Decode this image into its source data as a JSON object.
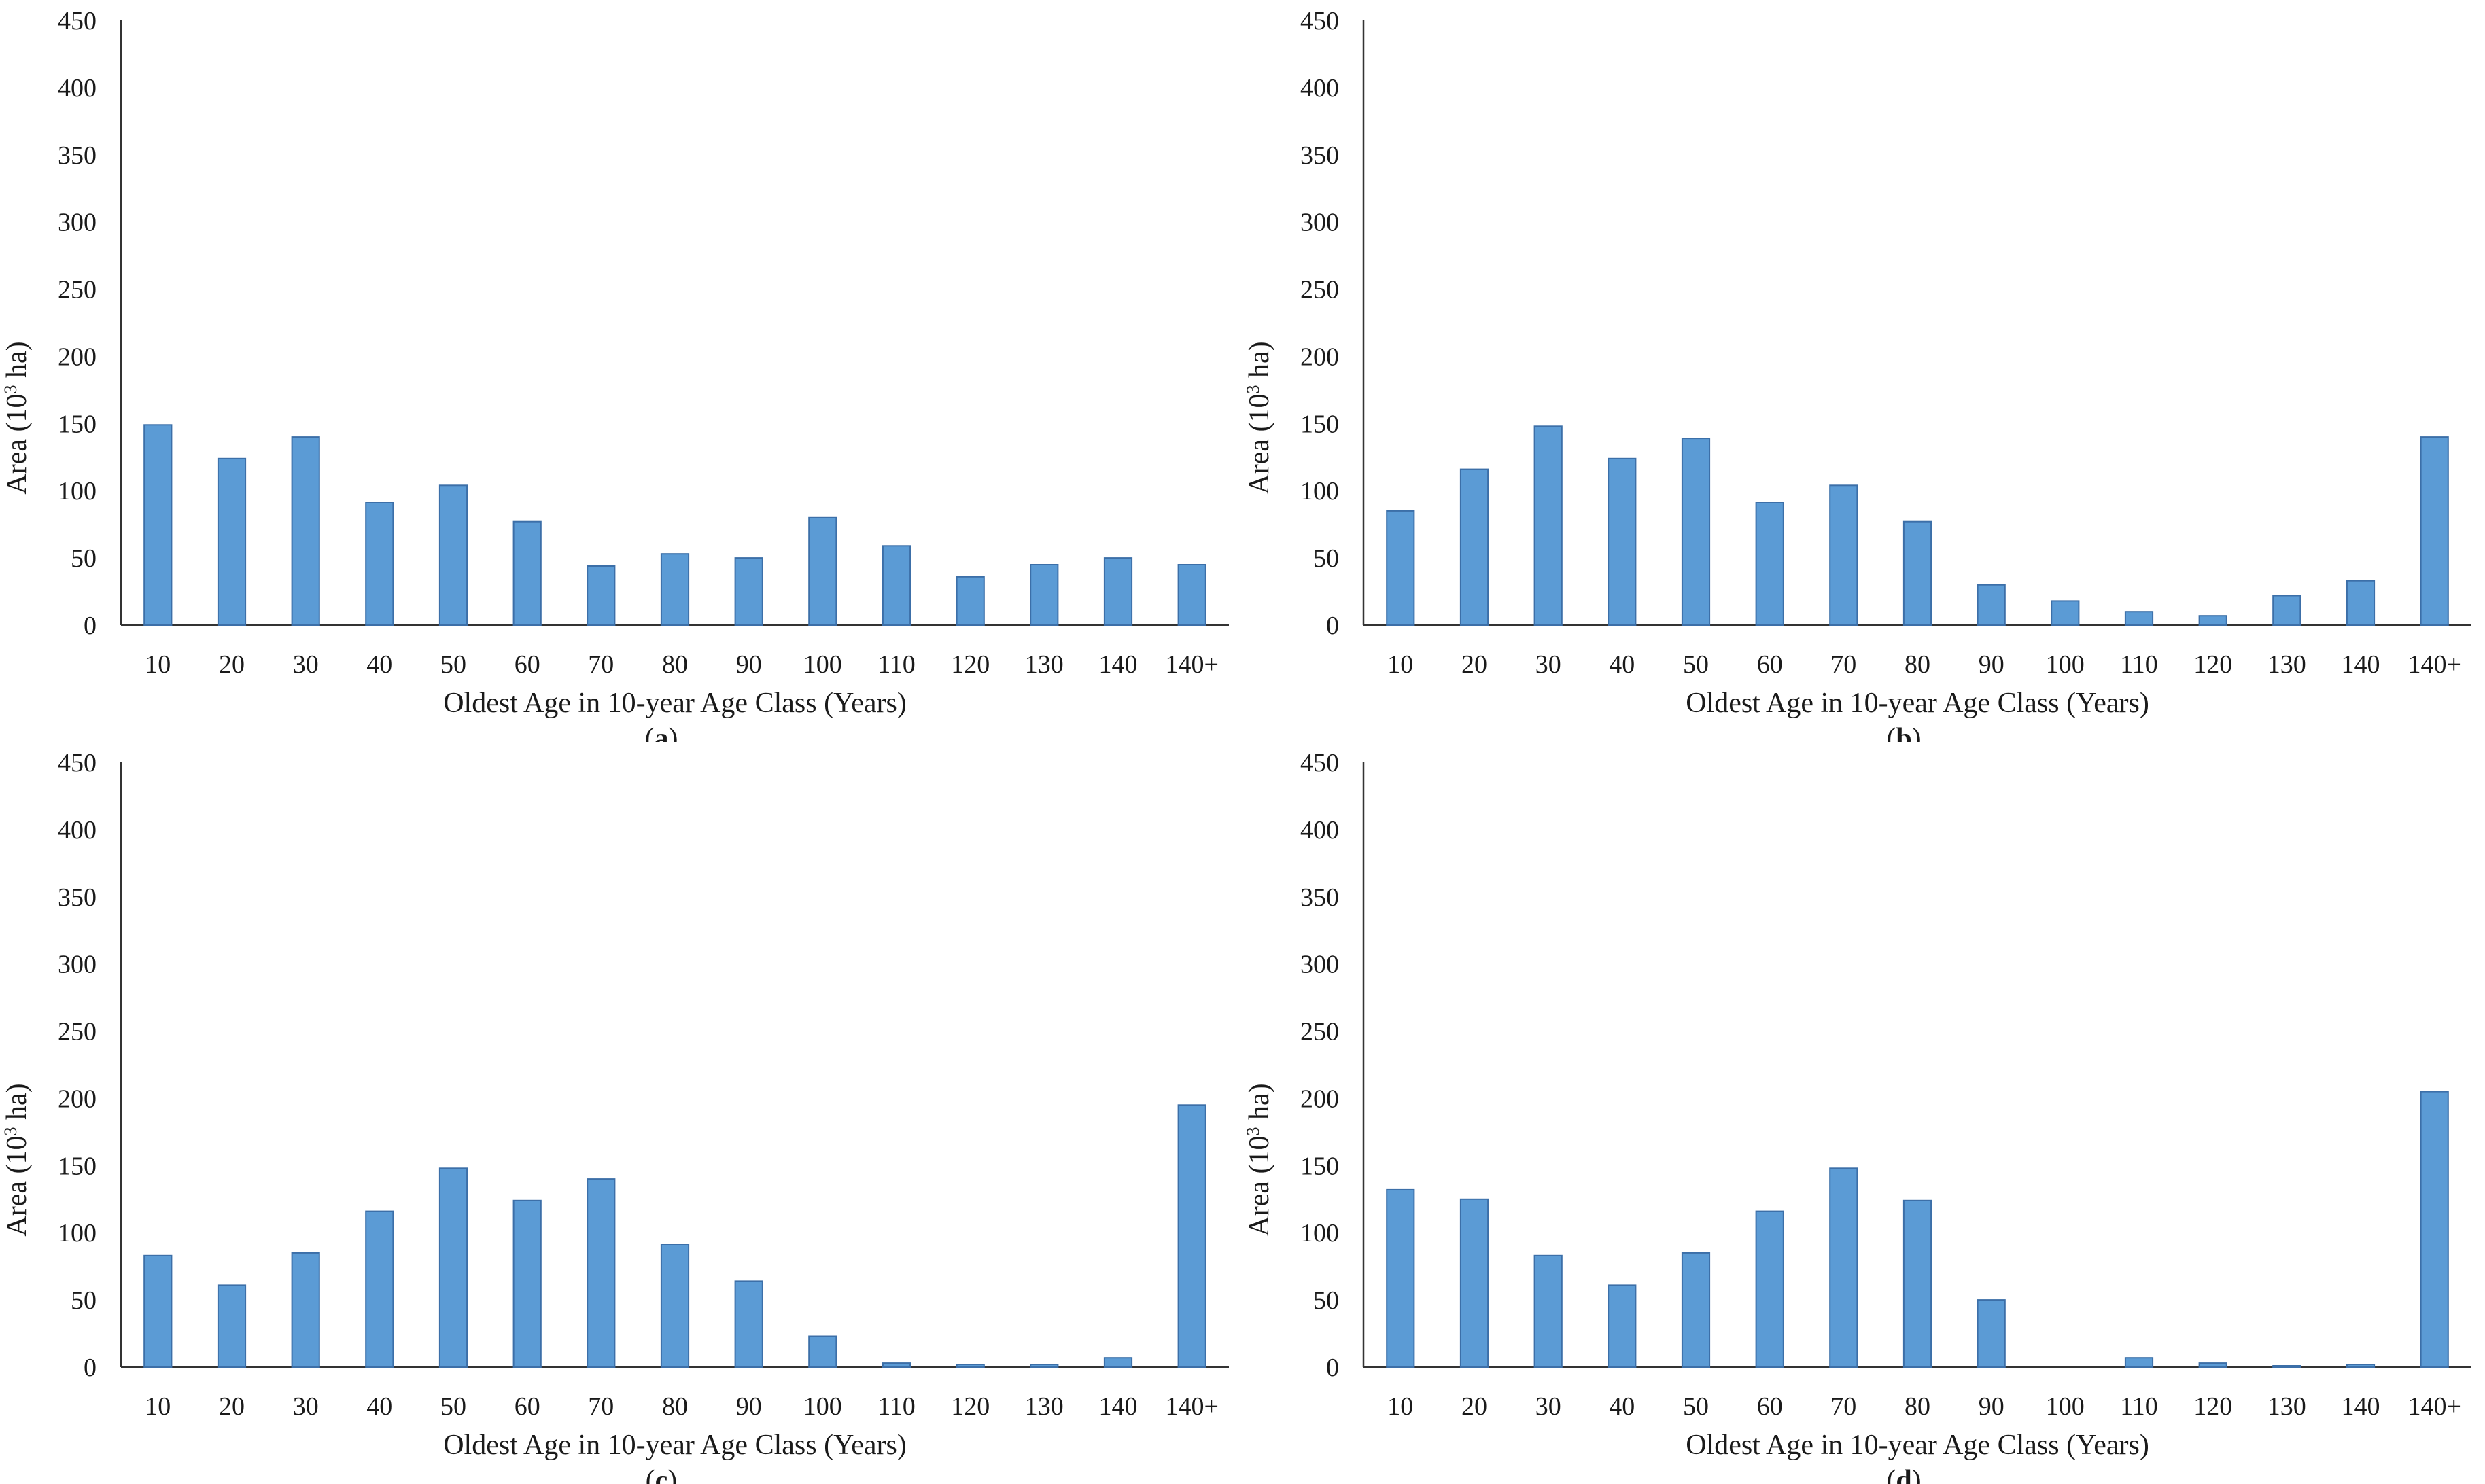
{
  "figure": {
    "bar_color": "#5b9bd5",
    "bar_edge_color": "#3c6fa8"
  },
  "chart_data": [
    {
      "panel": "a",
      "type": "bar",
      "caption": "a",
      "categories": [
        "10",
        "20",
        "30",
        "40",
        "50",
        "60",
        "70",
        "80",
        "90",
        "100",
        "110",
        "120",
        "130",
        "140",
        "140+"
      ],
      "values": [
        149,
        124,
        140,
        91,
        104,
        77,
        44,
        53,
        50,
        80,
        59,
        36,
        45,
        50,
        45
      ],
      "yticks": [
        "0",
        "50",
        "100",
        "150",
        "200",
        "250",
        "300",
        "350",
        "400",
        "450"
      ],
      "ylim": [
        0,
        450
      ],
      "xlabel": "Oldest Age in 10-year Age Class (Years)",
      "ylabel_pre": "Area (10",
      "ylabel_sup": "3",
      "ylabel_post": " ha)"
    },
    {
      "panel": "b",
      "type": "bar",
      "caption": "b",
      "categories": [
        "10",
        "20",
        "30",
        "40",
        "50",
        "60",
        "70",
        "80",
        "90",
        "100",
        "110",
        "120",
        "130",
        "140",
        "140+"
      ],
      "values": [
        85,
        116,
        148,
        124,
        139,
        91,
        104,
        77,
        30,
        18,
        10,
        7,
        22,
        33,
        140
      ],
      "yticks": [
        "0",
        "50",
        "100",
        "150",
        "200",
        "250",
        "300",
        "350",
        "400",
        "450"
      ],
      "ylim": [
        0,
        450
      ],
      "xlabel": "Oldest Age in 10-year Age Class (Years)",
      "ylabel_pre": "Area (10",
      "ylabel_sup": "3",
      "ylabel_post": " ha)"
    },
    {
      "panel": "c",
      "type": "bar",
      "caption": "c",
      "categories": [
        "10",
        "20",
        "30",
        "40",
        "50",
        "60",
        "70",
        "80",
        "90",
        "100",
        "110",
        "120",
        "130",
        "140",
        "140+"
      ],
      "values": [
        83,
        61,
        85,
        116,
        148,
        124,
        140,
        91,
        64,
        23,
        3,
        2,
        2,
        7,
        195
      ],
      "yticks": [
        "0",
        "50",
        "100",
        "150",
        "200",
        "250",
        "300",
        "350",
        "400",
        "450"
      ],
      "ylim": [
        0,
        450
      ],
      "xlabel": "Oldest Age in 10-year Age Class (Years)",
      "ylabel_pre": "Area (10",
      "ylabel_sup": "3",
      "ylabel_post": " ha)"
    },
    {
      "panel": "d",
      "type": "bar",
      "caption": "d",
      "categories": [
        "10",
        "20",
        "30",
        "40",
        "50",
        "60",
        "70",
        "80",
        "90",
        "100",
        "110",
        "120",
        "130",
        "140",
        "140+"
      ],
      "values": [
        132,
        125,
        83,
        61,
        85,
        116,
        148,
        124,
        50,
        0,
        7,
        3,
        1,
        2,
        205
      ],
      "yticks": [
        "0",
        "50",
        "100",
        "150",
        "200",
        "250",
        "300",
        "350",
        "400",
        "450"
      ],
      "ylim": [
        0,
        450
      ],
      "xlabel": "Oldest Age in 10-year Age Class (Years)",
      "ylabel_pre": "Area (10",
      "ylabel_sup": "3",
      "ylabel_post": " ha)"
    }
  ]
}
